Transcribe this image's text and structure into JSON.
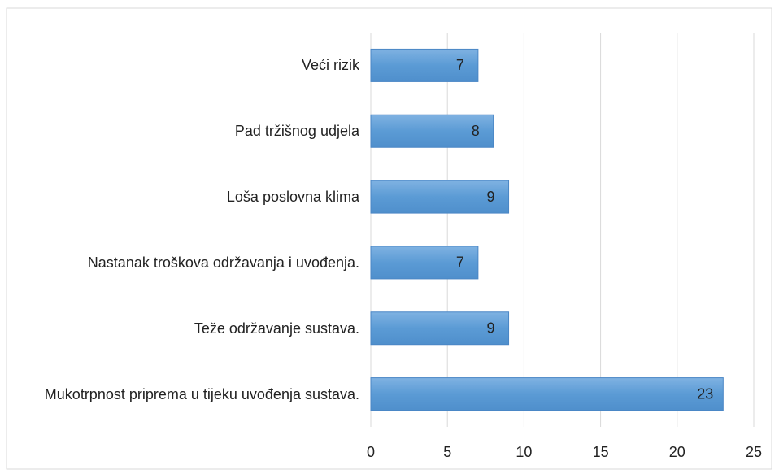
{
  "chart_data": {
    "type": "bar",
    "orientation": "horizontal",
    "categories": [
      "Veći rizik",
      "Pad tržišnog udjela",
      "Loša poslovna klima",
      "Nastanak troškova održavanja i uvođenja.",
      "Teže održavanje sustava.",
      "Mukotrpnost priprema u tijeku uvođenja sustava."
    ],
    "values": [
      7,
      8,
      9,
      7,
      9,
      23
    ],
    "color": "#5b9bd5",
    "xlim": [
      0,
      25
    ],
    "xticks": [
      0,
      5,
      10,
      15,
      20,
      25
    ],
    "grid": true
  }
}
